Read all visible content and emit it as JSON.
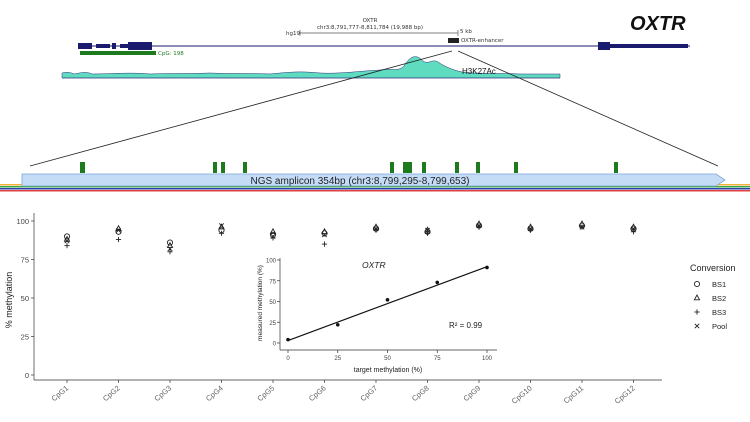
{
  "colors": {
    "gene_blue": "#1a1a6e",
    "cpg_green": "#1e7a1e",
    "h3k27ac": "#5fdcc0",
    "amplicon_fill": "#c5dcf7",
    "amplicon_stroke": "#7aa4d8",
    "marker": "#222222"
  },
  "genome_track": {
    "gene_name": "OXTR",
    "locus_title": "OXTR",
    "locus_coords": "chr3:8,791,777-8,811,784 (19,988 bp)",
    "assembly": "hg19",
    "scale_label": "5 kb",
    "enhancer_label": "OXTR-enhancer",
    "cpg_label": "CpG: 198",
    "h3k27ac_label": "H3K27Ac",
    "amplicon_label": "NGS amplicon 354bp (chr3:8,799,295-8,799,653)"
  },
  "chart_data": [
    {
      "type": "scatter",
      "title": "",
      "xlabel": "",
      "ylabel": "% methylation",
      "categories": [
        "CpG1",
        "CpG2",
        "CpG3",
        "CpG4",
        "CpG5",
        "CpG6",
        "CpG7",
        "CpG8",
        "CpG9",
        "CpG10",
        "CpG11",
        "CpG12"
      ],
      "ylim": [
        0,
        100
      ],
      "yticks": [
        0,
        25,
        50,
        75,
        100
      ],
      "grid": false,
      "legend": {
        "title": "Conversion",
        "position": "right"
      },
      "series": [
        {
          "name": "BS1",
          "shape": "circle",
          "values": [
            90,
            93,
            86,
            94,
            91,
            92,
            95,
            93,
            97,
            95,
            97,
            95
          ]
        },
        {
          "name": "BS2",
          "shape": "triangle",
          "values": [
            88,
            95,
            84,
            96,
            93,
            93,
            96,
            94,
            98,
            96,
            98,
            96
          ]
        },
        {
          "name": "BS3",
          "shape": "plus",
          "values": [
            84,
            88,
            80,
            92,
            89,
            85,
            94,
            92,
            96,
            94,
            96,
            93
          ]
        },
        {
          "name": "Pool",
          "shape": "cross",
          "values": [
            87,
            94,
            82,
            97,
            90,
            91,
            95,
            94,
            97,
            95,
            96,
            95
          ]
        }
      ]
    },
    {
      "type": "scatter",
      "title": "OXTR",
      "xlabel": "target methylation (%)",
      "ylabel": "measured methylation (%)",
      "xlim": [
        0,
        100
      ],
      "ylim": [
        0,
        100
      ],
      "xticks": [
        0,
        25,
        50,
        75,
        100
      ],
      "yticks": [
        0,
        25,
        50,
        75,
        100
      ],
      "points": [
        {
          "x": 0,
          "y": 4
        },
        {
          "x": 25,
          "y": 22
        },
        {
          "x": 50,
          "y": 52
        },
        {
          "x": 75,
          "y": 73
        },
        {
          "x": 100,
          "y": 91
        }
      ],
      "fit_line": {
        "x": [
          0,
          100
        ],
        "y": [
          3,
          92
        ]
      },
      "annotation": "R² = 0.99"
    }
  ]
}
